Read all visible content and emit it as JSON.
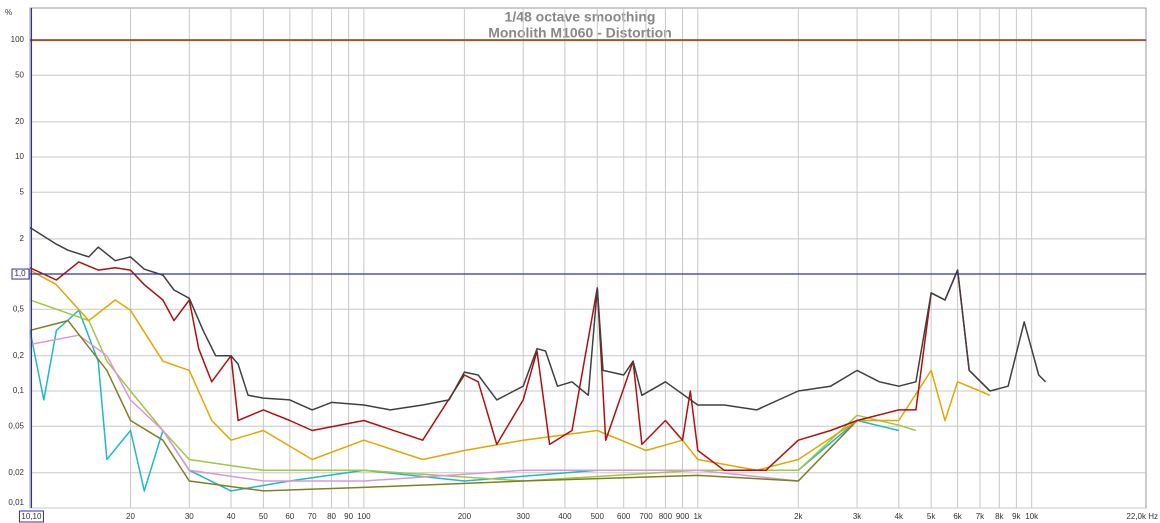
{
  "chart_data": {
    "type": "line",
    "title": "1/48 octave smoothing",
    "subtitle": "Monolith M1060 - Distortion",
    "y_unit": "%",
    "xlim": [
      10,
      22000
    ],
    "ylim": [
      0.01,
      188
    ],
    "log_x": true,
    "log_y": true,
    "grid": true,
    "xticks": [
      20,
      30,
      40,
      50,
      60,
      70,
      80,
      90,
      100,
      200,
      300,
      400,
      500,
      600,
      700,
      800,
      900,
      {
        "value": 1000,
        "label": "1k"
      },
      {
        "value": 2000,
        "label": "2k"
      },
      {
        "value": 3000,
        "label": "3k"
      },
      {
        "value": 4000,
        "label": "4k"
      },
      {
        "value": 5000,
        "label": "5k"
      },
      {
        "value": 6000,
        "label": "6k"
      },
      {
        "value": 7000,
        "label": "7k"
      },
      {
        "value": 8000,
        "label": "8k"
      },
      {
        "value": 9000,
        "label": "9k"
      },
      {
        "value": 10000,
        "label": "10k"
      },
      {
        "value": 22000,
        "label": "22,0k Hz"
      }
    ],
    "yticks": [
      100,
      50,
      20,
      10,
      5,
      2,
      {
        "value": 0.5,
        "label": "0,5"
      },
      {
        "value": 0.2,
        "label": "0,2"
      },
      {
        "value": 0.1,
        "label": "0,1"
      },
      {
        "value": 0.05,
        "label": "0,05"
      },
      {
        "value": 0.02,
        "label": "0,02"
      },
      {
        "value": 0.01,
        "label": "0,01"
      }
    ],
    "cursor": {
      "x": {
        "value": 10.1,
        "label": "10,10"
      },
      "y": {
        "value": 1,
        "label": "1,0"
      },
      "color": "#3030a0"
    },
    "series": [
      {
        "color": "#a0522d",
        "x": [
          10,
          22000
        ],
        "values": [
          100,
          100
        ]
      },
      {
        "color": "#20b8c8",
        "x": [
          10,
          11,
          12,
          14,
          16,
          17,
          20,
          22,
          25,
          30,
          40,
          60,
          100,
          200,
          500,
          1000,
          2000,
          3000,
          4000
        ],
        "values": [
          0.33,
          0.084,
          0.33,
          0.49,
          0.18,
          0.026,
          0.046,
          0.014,
          0.046,
          0.021,
          0.014,
          0.017,
          0.021,
          0.017,
          0.021,
          0.021,
          0.021,
          0.056,
          0.046
        ]
      },
      {
        "color": "#a0c840",
        "x": [
          10,
          15,
          17,
          20,
          25,
          30,
          50,
          100,
          300,
          1000,
          2000,
          3000,
          4000,
          4500
        ],
        "values": [
          0.6,
          0.4,
          0.18,
          0.1,
          0.046,
          0.026,
          0.021,
          0.021,
          0.017,
          0.021,
          0.021,
          0.062,
          0.051,
          0.046
        ]
      },
      {
        "color": "#d898d8",
        "x": [
          10,
          14,
          17,
          20,
          25,
          30,
          50,
          100,
          300,
          1000,
          2000,
          3000,
          3500
        ],
        "values": [
          0.25,
          0.3,
          0.2,
          0.084,
          0.046,
          0.021,
          0.017,
          0.017,
          0.021,
          0.021,
          0.017,
          0.056,
          0.056
        ]
      },
      {
        "color": "#808020",
        "x": [
          10,
          13,
          17,
          20,
          25,
          30,
          50,
          100,
          300,
          1000,
          2000,
          3000
        ],
        "values": [
          0.33,
          0.4,
          0.15,
          0.056,
          0.038,
          0.017,
          0.014,
          0.015,
          0.017,
          0.019,
          0.017,
          0.056
        ]
      },
      {
        "color": "#e0a800",
        "x": [
          10,
          12,
          15,
          18,
          20,
          25,
          30,
          35,
          40,
          50,
          70,
          100,
          150,
          200,
          300,
          500,
          700,
          900,
          1000,
          1500,
          2000,
          3000,
          4000,
          5000,
          5500,
          6000,
          7000,
          7500
        ],
        "values": [
          1.08,
          0.81,
          0.4,
          0.6,
          0.49,
          0.18,
          0.15,
          0.056,
          0.038,
          0.046,
          0.026,
          0.038,
          0.026,
          0.031,
          0.038,
          0.046,
          0.031,
          0.038,
          0.026,
          0.021,
          0.026,
          0.056,
          0.056,
          0.15,
          0.056,
          0.12,
          0.1,
          0.092
        ]
      },
      {
        "color": "#b01010",
        "x": [
          10,
          12,
          14,
          16,
          18,
          20,
          22,
          25,
          27,
          30,
          32,
          35,
          40,
          42,
          50,
          60,
          70,
          100,
          150,
          200,
          220,
          250,
          300,
          330,
          360,
          420,
          500,
          530,
          640,
          680,
          800,
          900,
          950,
          1000,
          1200,
          1600,
          2000,
          2500,
          3000,
          4000,
          4500,
          5000,
          5500,
          6000,
          6500,
          7500
        ],
        "values": [
          1.13,
          0.89,
          1.27,
          1.08,
          1.13,
          1.08,
          0.81,
          0.6,
          0.4,
          0.6,
          0.23,
          0.12,
          0.2,
          0.056,
          0.069,
          0.056,
          0.046,
          0.056,
          0.038,
          0.137,
          0.12,
          0.035,
          0.084,
          0.22,
          0.035,
          0.046,
          0.76,
          0.038,
          0.18,
          0.035,
          0.056,
          0.038,
          0.1,
          0.031,
          0.021,
          0.021,
          0.038,
          0.046,
          0.056,
          0.069,
          0.069,
          0.69,
          0.6,
          1.08,
          0.15,
          0.1
        ]
      },
      {
        "color": "#404040",
        "x": [
          10,
          12,
          13,
          15,
          16,
          18,
          20,
          22,
          25,
          27,
          30,
          33,
          36,
          40,
          42,
          45,
          50,
          60,
          70,
          80,
          100,
          120,
          150,
          180,
          200,
          220,
          250,
          300,
          330,
          350,
          380,
          420,
          470,
          500,
          520,
          600,
          640,
          680,
          800,
          1000,
          1200,
          1500,
          2000,
          2500,
          3000,
          3500,
          4000,
          4500,
          5000,
          5500,
          6000,
          6500,
          7500,
          8500,
          9500,
          10500,
          11000
        ],
        "values": [
          2.5,
          1.8,
          1.6,
          1.4,
          1.7,
          1.3,
          1.4,
          1.1,
          0.98,
          0.73,
          0.62,
          0.33,
          0.2,
          0.2,
          0.17,
          0.092,
          0.087,
          0.084,
          0.069,
          0.08,
          0.076,
          0.069,
          0.076,
          0.084,
          0.145,
          0.137,
          0.084,
          0.11,
          0.23,
          0.22,
          0.11,
          0.12,
          0.092,
          0.76,
          0.15,
          0.137,
          0.18,
          0.092,
          0.12,
          0.076,
          0.076,
          0.069,
          0.1,
          0.11,
          0.15,
          0.12,
          0.11,
          0.12,
          0.69,
          0.6,
          1.08,
          0.15,
          0.1,
          0.11,
          0.39,
          0.137,
          0.12
        ]
      }
    ]
  }
}
